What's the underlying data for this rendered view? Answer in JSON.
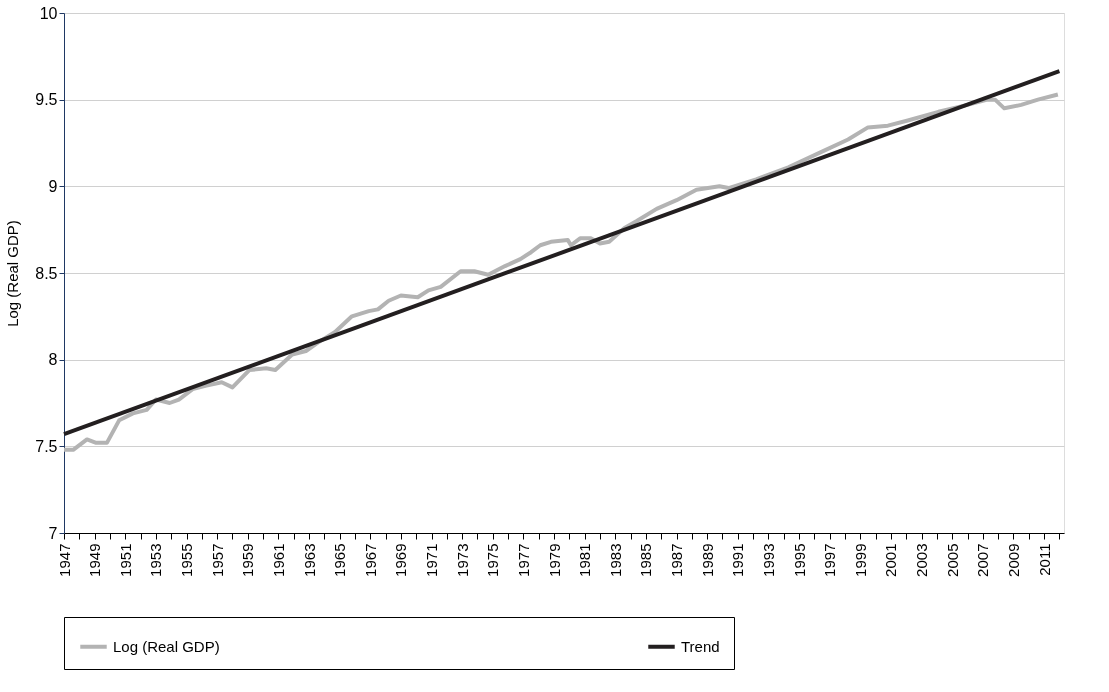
{
  "chart_data": {
    "type": "line",
    "ylabel": "Log (Real GDP)",
    "xlim": [
      1947,
      2012.3
    ],
    "ylim": [
      7,
      10
    ],
    "yticks": [
      7,
      7.5,
      8,
      8.5,
      9,
      9.5,
      10
    ],
    "xticks": [
      1947,
      {
        "value": 1948,
        "label": null
      },
      1949,
      {
        "value": 1950,
        "label": null
      },
      1951,
      {
        "value": 1952,
        "label": null
      },
      1953,
      {
        "value": 1954,
        "label": null
      },
      1955,
      {
        "value": 1956,
        "label": null
      },
      1957,
      {
        "value": 1958,
        "label": null
      },
      1959,
      {
        "value": 1960,
        "label": null
      },
      1961,
      {
        "value": 1962,
        "label": null
      },
      1963,
      {
        "value": 1964,
        "label": null
      },
      1965,
      {
        "value": 1966,
        "label": null
      },
      1967,
      {
        "value": 1968,
        "label": null
      },
      1969,
      {
        "value": 1970,
        "label": null
      },
      1971,
      {
        "value": 1972,
        "label": null
      },
      1973,
      {
        "value": 1974,
        "label": null
      },
      1975,
      {
        "value": 1976,
        "label": null
      },
      1977,
      {
        "value": 1978,
        "label": null
      },
      1979,
      {
        "value": 1980,
        "label": null
      },
      1981,
      {
        "value": 1982,
        "label": null
      },
      1983,
      {
        "value": 1984,
        "label": null
      },
      1985,
      {
        "value": 1986,
        "label": null
      },
      1987,
      {
        "value": 1988,
        "label": null
      },
      1989,
      {
        "value": 1990,
        "label": null
      },
      1991,
      {
        "value": 1992,
        "label": null
      },
      1993,
      {
        "value": 1994,
        "label": null
      },
      1995,
      {
        "value": 1996,
        "label": null
      },
      1997,
      {
        "value": 1998,
        "label": null
      },
      1999,
      {
        "value": 2000,
        "label": null
      },
      2001,
      {
        "value": 2002,
        "label": null
      },
      2003,
      {
        "value": 2004,
        "label": null
      },
      2005,
      {
        "value": 2006,
        "label": null
      },
      2007,
      {
        "value": 2008,
        "label": null
      },
      2009,
      {
        "value": 2010,
        "label": null
      },
      2011,
      {
        "value": 2012,
        "label": null
      }
    ],
    "grid": "y",
    "legend": "bottom",
    "marker": "none",
    "line_style": "solid",
    "series": [
      {
        "name": "Log (Real GDP)",
        "color": "#b3b3b3",
        "x": [
          1947.0,
          1947.6,
          1948.5,
          1949.1,
          1949.8,
          1950.6,
          1951.5,
          1952.4,
          1953.0,
          1953.9,
          1954.5,
          1955.4,
          1956.3,
          1957.3,
          1958.0,
          1959.1,
          1960.2,
          1960.8,
          1961.9,
          1962.8,
          1963.6,
          1964.7,
          1965.8,
          1966.9,
          1967.5,
          1968.2,
          1969.0,
          1970.1,
          1970.8,
          1971.6,
          1972.9,
          1973.8,
          1974.7,
          1975.8,
          1976.8,
          1977.5,
          1978.1,
          1978.8,
          1979.9,
          1980.1,
          1980.7,
          1981.4,
          1982.0,
          1982.6,
          1983.6,
          1984.4,
          1985.7,
          1987.0,
          1988.3,
          1989.8,
          1990.4,
          1992.2,
          1994.3,
          1996.5,
          1998.2,
          1999.5,
          2000.8,
          2002.1,
          2004.1,
          2006.0,
          2007.3,
          2007.8,
          2008.4,
          2009.5,
          2010.6,
          2011.9
        ],
        "values": [
          7.48,
          7.48,
          7.54,
          7.52,
          7.52,
          7.65,
          7.69,
          7.71,
          7.77,
          7.75,
          7.77,
          7.83,
          7.85,
          7.87,
          7.84,
          7.94,
          7.95,
          7.94,
          8.03,
          8.05,
          8.1,
          8.16,
          8.25,
          8.28,
          8.29,
          8.34,
          8.37,
          8.36,
          8.4,
          8.42,
          8.51,
          8.51,
          8.49,
          8.54,
          8.58,
          8.62,
          8.66,
          8.68,
          8.69,
          8.66,
          8.7,
          8.7,
          8.67,
          8.68,
          8.76,
          8.8,
          8.87,
          8.92,
          8.98,
          9.0,
          8.99,
          9.04,
          9.11,
          9.2,
          9.27,
          9.34,
          9.35,
          9.38,
          9.43,
          9.47,
          9.5,
          9.5,
          9.45,
          9.47,
          9.5,
          9.53
        ]
      },
      {
        "name": "Trend",
        "color": "#231f20",
        "x": [
          1947,
          2012
        ],
        "values": [
          7.57,
          9.665
        ]
      }
    ]
  }
}
